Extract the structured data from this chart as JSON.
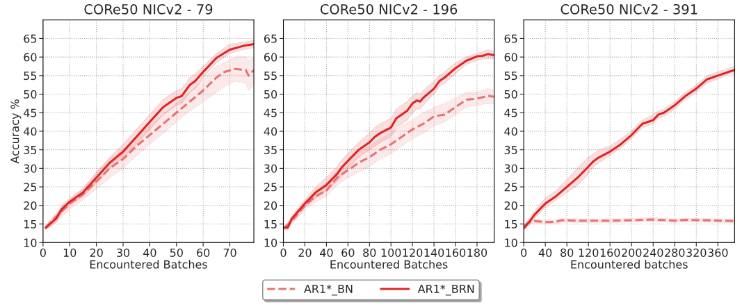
{
  "chart_data": [
    {
      "type": "line",
      "title": "CORe50 NICv2 - 79",
      "xlabel": "Encountered Batches",
      "ylabel": "Accuracy %",
      "xlim": [
        0,
        79
      ],
      "xticks": [
        0,
        10,
        20,
        30,
        40,
        50,
        60,
        70
      ],
      "ylim": [
        10,
        70
      ],
      "yticks": [
        10,
        15,
        20,
        25,
        30,
        35,
        40,
        45,
        50,
        55,
        60,
        65
      ],
      "grid": true,
      "series": [
        {
          "color": "#e87272",
          "line_style": "dashed",
          "x": [
            1,
            5,
            10,
            15,
            20,
            25,
            30,
            35,
            40,
            45,
            50,
            55,
            60,
            65,
            68,
            72,
            76,
            77,
            79
          ],
          "values": [
            14,
            17,
            20.5,
            23,
            26.5,
            30,
            32.5,
            36,
            39,
            42,
            45,
            48,
            51,
            54.5,
            56,
            56.8,
            56.5,
            55,
            56.5
          ],
          "lower": [
            13.5,
            15.5,
            19,
            21.5,
            24.5,
            27.5,
            30,
            33.5,
            36.5,
            39.5,
            42.5,
            45.5,
            48,
            50.5,
            52,
            53.5,
            53,
            51,
            52.5
          ],
          "upper": [
            14.5,
            18,
            21.5,
            24.5,
            28.5,
            32.5,
            35,
            38.5,
            41.5,
            44.5,
            47.5,
            50.5,
            54,
            57.5,
            58.5,
            60,
            60,
            59,
            60
          ]
        },
        {
          "color": "#dc2626",
          "line_style": "solid",
          "x": [
            1,
            5,
            7,
            10,
            15,
            20,
            25,
            30,
            35,
            40,
            45,
            50,
            52,
            55,
            57,
            60,
            65,
            70,
            75,
            79
          ],
          "values": [
            14,
            16.5,
            19,
            21,
            23.5,
            27.5,
            31.5,
            34.5,
            38.5,
            42.5,
            46.5,
            49,
            49.5,
            52.5,
            53.5,
            56,
            59.8,
            62,
            63,
            63.5
          ],
          "lower": [
            13.5,
            15.5,
            18,
            20,
            22.5,
            26,
            30,
            33,
            36.5,
            40.5,
            44.5,
            47,
            47.5,
            50.5,
            51.5,
            54.5,
            58.5,
            61,
            62,
            62.5
          ],
          "upper": [
            14.5,
            17.5,
            20,
            22,
            24.5,
            29,
            33,
            36.5,
            40.5,
            44.5,
            48.5,
            51,
            51.5,
            54.5,
            55.5,
            57.5,
            61,
            63.5,
            64,
            64.5
          ]
        }
      ]
    },
    {
      "type": "line",
      "title": "CORe50 NICv2 - 196",
      "xlabel": "Encountered Batches",
      "xlim": [
        0,
        196
      ],
      "xticks": [
        0,
        20,
        40,
        60,
        80,
        100,
        120,
        140,
        160,
        180
      ],
      "ylim": [
        10,
        70
      ],
      "yticks": [
        10,
        15,
        20,
        25,
        30,
        35,
        40,
        45,
        50,
        55,
        60,
        65
      ],
      "grid": true,
      "legend": "bottom",
      "series": [
        {
          "name": "AR1*_BN",
          "color": "#e87272",
          "line_style": "dashed",
          "x": [
            1,
            10,
            20,
            30,
            40,
            50,
            60,
            70,
            80,
            90,
            100,
            110,
            120,
            130,
            140,
            150,
            160,
            170,
            180,
            190,
            196
          ],
          "values": [
            14,
            16.5,
            20,
            22.5,
            24,
            27.5,
            29.5,
            31.5,
            33,
            35,
            36.5,
            38.5,
            40.5,
            42,
            44,
            44.5,
            46.5,
            48.5,
            48.8,
            49.5,
            49.3
          ],
          "lower": [
            13.5,
            15.5,
            19,
            21,
            22.5,
            25.5,
            27.5,
            29,
            30.5,
            32.5,
            34,
            36,
            38,
            39.5,
            41.5,
            42.5,
            44.5,
            46.5,
            47,
            47.5,
            47.5
          ],
          "upper": [
            14.5,
            17.5,
            21,
            24,
            26,
            29.5,
            32,
            34.5,
            36,
            38,
            39.5,
            41.5,
            43,
            45,
            46.5,
            47.5,
            49,
            50.5,
            50.5,
            51.5,
            51
          ]
        },
        {
          "name": "AR1*_BRN",
          "color": "#dc2626",
          "line_style": "solid",
          "x": [
            1,
            4,
            8,
            20,
            30,
            40,
            50,
            55,
            60,
            70,
            80,
            85,
            90,
            100,
            105,
            110,
            115,
            120,
            124,
            127,
            130,
            140,
            145,
            150,
            160,
            170,
            180,
            185,
            190,
            196
          ],
          "values": [
            14,
            14,
            16.5,
            20.5,
            23.5,
            25.5,
            28.5,
            30.5,
            32,
            35,
            37,
            38.5,
            39.5,
            41,
            43.5,
            44.5,
            45.5,
            47.5,
            48.3,
            48,
            49,
            51.5,
            53.5,
            54.5,
            57,
            59,
            60.2,
            60.3,
            60.8,
            60.5
          ],
          "lower": [
            13.5,
            13.5,
            15.5,
            19.5,
            22,
            24,
            26.5,
            28.5,
            30,
            33,
            35,
            36,
            37,
            38.5,
            41,
            42,
            43,
            45,
            46,
            46,
            47,
            50,
            52,
            53,
            55.5,
            58,
            59,
            59.5,
            59.5,
            59.5
          ],
          "upper": [
            14.5,
            14.5,
            17.5,
            21.5,
            25,
            27.5,
            30.5,
            32.5,
            34,
            37,
            39.5,
            41,
            42,
            43.5,
            46,
            47,
            48,
            49.5,
            50.5,
            50,
            51,
            53.5,
            55,
            56,
            58.5,
            60,
            61,
            61.5,
            62,
            61.5
          ]
        }
      ]
    },
    {
      "type": "line",
      "title": "CORe50 NICv2 - 391",
      "xlabel": "Encountered batches",
      "xlim": [
        0,
        391
      ],
      "xticks": [
        0,
        40,
        80,
        120,
        160,
        200,
        240,
        280,
        320,
        360
      ],
      "ylim": [
        10,
        70
      ],
      "yticks": [
        10,
        15,
        20,
        25,
        30,
        35,
        40,
        45,
        50,
        55,
        60,
        65
      ],
      "grid": true,
      "series": [
        {
          "color": "#e87272",
          "line_style": "dashed",
          "x": [
            1,
            10,
            20,
            40,
            60,
            70,
            100,
            160,
            200,
            240,
            280,
            300,
            340,
            391
          ],
          "values": [
            14.5,
            15.5,
            15.8,
            15.5,
            15.6,
            16,
            15.9,
            15.9,
            16,
            16.2,
            15.9,
            16.1,
            16,
            15.8
          ],
          "lower": [
            14,
            15,
            15.3,
            15,
            15.1,
            15.5,
            15.4,
            15.4,
            15.5,
            15.7,
            15.4,
            15.6,
            15.5,
            15.3
          ],
          "upper": [
            15,
            16,
            16.3,
            16,
            16.1,
            16.5,
            16.4,
            16.4,
            16.5,
            16.7,
            16.4,
            16.6,
            16.5,
            16.3
          ]
        },
        {
          "color": "#dc2626",
          "line_style": "solid",
          "x": [
            1,
            10,
            20,
            40,
            60,
            80,
            100,
            120,
            130,
            140,
            160,
            180,
            200,
            220,
            240,
            250,
            260,
            280,
            300,
            320,
            340,
            360,
            380,
            391
          ],
          "values": [
            14,
            15.5,
            17.5,
            20.5,
            22.5,
            25,
            27.5,
            30.5,
            32,
            33,
            34.5,
            36.5,
            39,
            42,
            43,
            44.5,
            45,
            47,
            49.5,
            51.5,
            54,
            55,
            56,
            56.5
          ],
          "lower": [
            13.5,
            14.5,
            16.5,
            19.5,
            21.5,
            23.5,
            25.5,
            28.5,
            30.5,
            31.5,
            33.5,
            35.5,
            38,
            41,
            42,
            43.5,
            44,
            46,
            48.5,
            50.5,
            53,
            54,
            55.5,
            55.5
          ],
          "upper": [
            14.5,
            16.5,
            18.5,
            22,
            24,
            27,
            30,
            33,
            34,
            35,
            36,
            38,
            40,
            43,
            44.5,
            45.5,
            46,
            48,
            50.5,
            52.5,
            55,
            56,
            57,
            57.5
          ]
        }
      ]
    }
  ]
}
